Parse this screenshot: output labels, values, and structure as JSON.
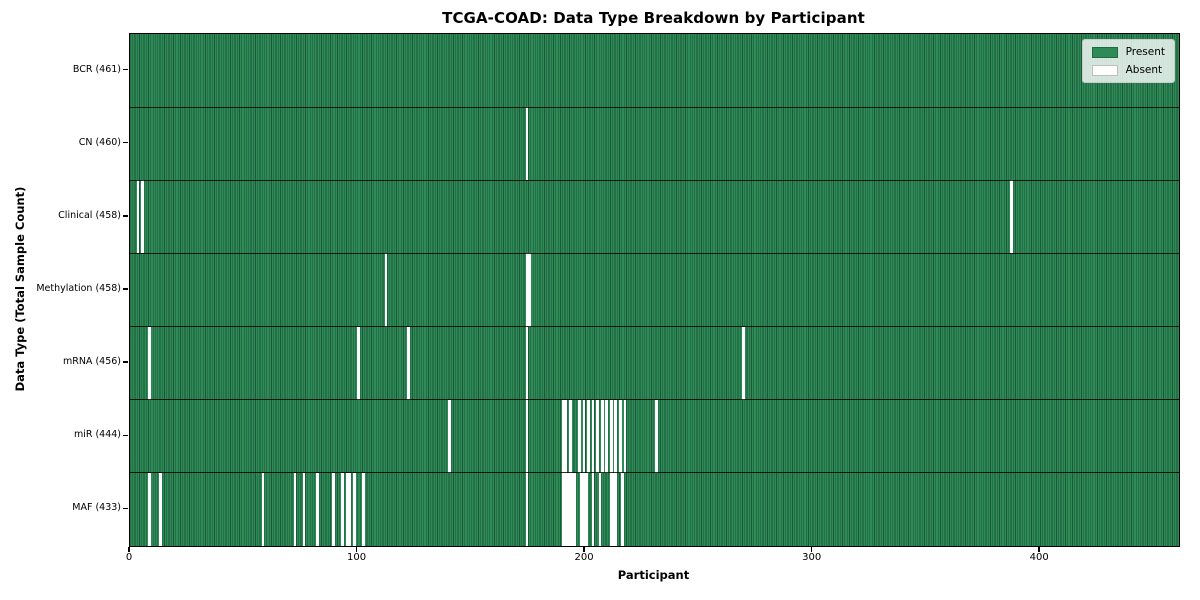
{
  "title": "TCGA-COAD: Data Type Breakdown by Participant",
  "axes": {
    "xlabel": "Participant",
    "ylabel": "Data Type (Total Sample Count)",
    "x_ticks": [
      "0",
      "100",
      "200",
      "300",
      "400"
    ]
  },
  "legend": {
    "present_label": "Present",
    "absent_label": "Absent"
  },
  "colors": {
    "present": "#2E8B57",
    "bar_edge": "#1C5737",
    "absent": "#FFFFFF",
    "spine": "#000000",
    "legend_bg": "rgba(255,255,255,0.8)",
    "legend_border": "#CCCCCC"
  },
  "chart_data": {
    "type": "heatmap",
    "title": "TCGA-COAD: Data Type Breakdown by Participant",
    "xlabel": "Participant",
    "ylabel": "Data Type (Total Sample Count)",
    "n_participants": 461,
    "xlim": [
      0,
      461
    ],
    "x_tick_values": [
      0,
      100,
      200,
      300,
      400
    ],
    "grid": false,
    "legend_position": "upper right",
    "legend_entries": [
      "Present",
      "Absent"
    ],
    "rows": [
      {
        "name": "BCR",
        "label": "BCR (461)",
        "total": 461,
        "absent_participants": []
      },
      {
        "name": "CN",
        "label": "CN (460)",
        "total": 460,
        "absent_participants": [
          174
        ]
      },
      {
        "name": "Clinical",
        "label": "Clinical (458)",
        "total": 458,
        "absent_participants": [
          3,
          5,
          387
        ]
      },
      {
        "name": "Methylation",
        "label": "Methylation (458)",
        "total": 458,
        "absent_participants": [
          112,
          174,
          175
        ]
      },
      {
        "name": "mRNA",
        "label": "mRNA (456)",
        "total": 456,
        "absent_participants": [
          8,
          100,
          122,
          174,
          269
        ]
      },
      {
        "name": "miR",
        "label": "miR (444)",
        "total": 444,
        "absent_participants": [
          140,
          174,
          190,
          191,
          193,
          197,
          199,
          201,
          203,
          205,
          207,
          209,
          211,
          213,
          215,
          217,
          231
        ]
      },
      {
        "name": "MAF",
        "label": "MAF (433)",
        "total": 433,
        "absent_participants": [
          8,
          13,
          58,
          72,
          76,
          82,
          89,
          93,
          95,
          96,
          98,
          102,
          174,
          190,
          191,
          192,
          193,
          194,
          195,
          198,
          199,
          200,
          203,
          206,
          211,
          212,
          213,
          216
        ]
      }
    ]
  }
}
